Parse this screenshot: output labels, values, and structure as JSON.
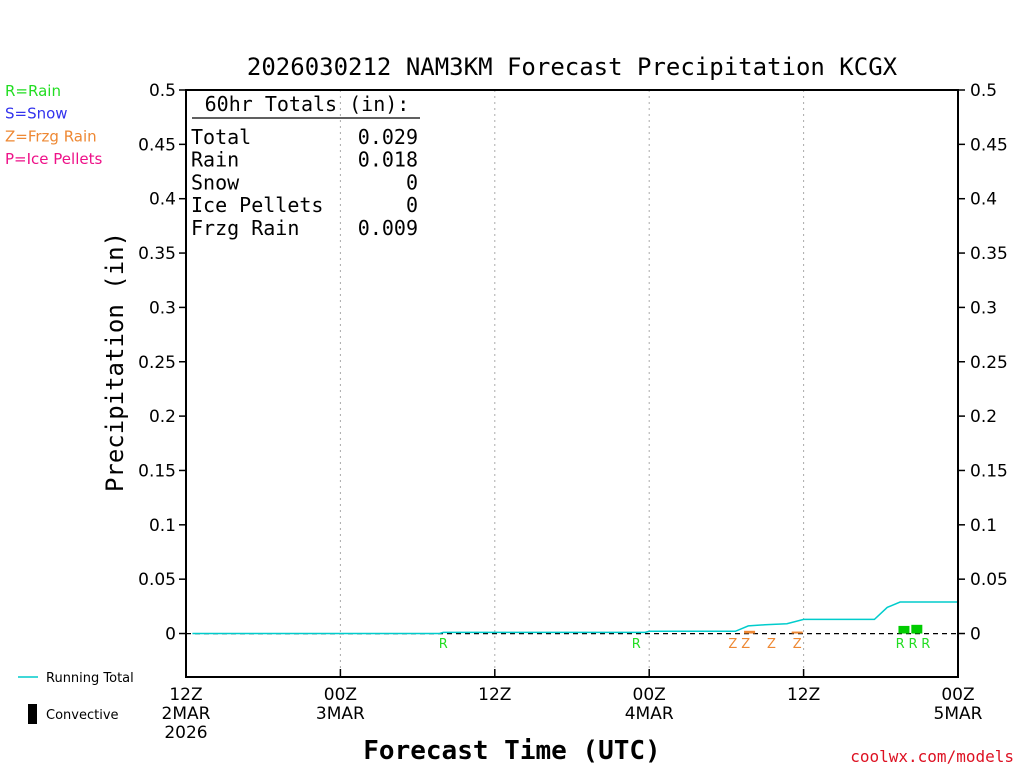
{
  "chart_data": {
    "type": "bar",
    "title": "2026030212 NAM3KM Forecast Precipitation KCGX",
    "xlabel": "Forecast Time (UTC)",
    "ylabel": "Precipitation (in)",
    "ylim": [
      -0.04,
      0.5
    ],
    "xlim": [
      0,
      60
    ],
    "yticks": [
      0,
      0.05,
      0.1,
      0.15,
      0.2,
      0.25,
      0.3,
      0.35,
      0.4,
      0.45,
      0.5
    ],
    "ytick_labels": [
      "0",
      "0.05",
      "0.1",
      "0.15",
      "0.2",
      "0.25",
      "0.3",
      "0.35",
      "0.4",
      "0.45",
      "0.5"
    ],
    "xticks": [
      {
        "hour": 0,
        "lines": [
          "12Z",
          "2MAR",
          "2026"
        ]
      },
      {
        "hour": 12,
        "lines": [
          "00Z",
          "3MAR"
        ]
      },
      {
        "hour": 24,
        "lines": [
          "12Z"
        ]
      },
      {
        "hour": 36,
        "lines": [
          "00Z",
          "4MAR"
        ]
      },
      {
        "hour": 48,
        "lines": [
          "12Z"
        ]
      },
      {
        "hour": 60,
        "lines": [
          "00Z",
          "5MAR"
        ]
      }
    ],
    "grid_hours": [
      12,
      24,
      36,
      48
    ],
    "legend_types": [
      {
        "label": "R=Rain",
        "color": "#22dd22"
      },
      {
        "label": "S=Snow",
        "color": "#3333ee"
      },
      {
        "label": "Z=Frzg Rain",
        "color": "#ee8833"
      },
      {
        "label": "P=Ice Pellets",
        "color": "#ee1188"
      }
    ],
    "legend_series": [
      {
        "label": "Running Total",
        "kind": "line",
        "color": "#00cccc"
      },
      {
        "label": "Convective",
        "kind": "bar",
        "color": "#000000"
      }
    ],
    "totals": {
      "header": "60hr Totals (in):",
      "rows": [
        {
          "label": "Total",
          "value": "0.029"
        },
        {
          "label": "Rain",
          "value": "0.018"
        },
        {
          "label": "Snow",
          "value": "0"
        },
        {
          "label": "Ice Pellets",
          "value": "0"
        },
        {
          "label": "Frzg Rain",
          "value": "0.009"
        }
      ]
    },
    "running_total": {
      "color": "#00cccc",
      "x": [
        0.5,
        19.7,
        20,
        35.7,
        36,
        42.7,
        43.7,
        45,
        46.7,
        48,
        53.5,
        54.5,
        55.5,
        60
      ],
      "y": [
        0,
        0,
        0.001,
        0.001,
        0.002,
        0.002,
        0.007,
        0.008,
        0.009,
        0.013,
        0.013,
        0.024,
        0.029,
        0.029
      ]
    },
    "bars": [
      {
        "hour": 43.8,
        "value": 0.0025,
        "type": "Z",
        "color": "#ee8833"
      },
      {
        "hour": 47.5,
        "value": 0.0018,
        "type": "Z",
        "color": "#ee8833"
      },
      {
        "hour": 55.8,
        "value": 0.007,
        "type": "R",
        "color": "#00cc00"
      },
      {
        "hour": 56.8,
        "value": 0.008,
        "type": "R",
        "color": "#00cc00"
      }
    ],
    "markers": [
      {
        "hour": 20,
        "label": "R",
        "color": "#22dd22"
      },
      {
        "hour": 35,
        "label": "R",
        "color": "#22dd22"
      },
      {
        "hour": 42.5,
        "label": "Z",
        "color": "#ee8833"
      },
      {
        "hour": 43.5,
        "label": "Z",
        "color": "#ee8833"
      },
      {
        "hour": 45.5,
        "label": "Z",
        "color": "#ee8833"
      },
      {
        "hour": 47.5,
        "label": "Z",
        "color": "#ee8833"
      },
      {
        "hour": 55.5,
        "label": "R",
        "color": "#22dd22"
      },
      {
        "hour": 56.5,
        "label": "R",
        "color": "#22dd22"
      },
      {
        "hour": 57.5,
        "label": "R",
        "color": "#22dd22"
      }
    ]
  },
  "credit": "coolwx.com/models"
}
